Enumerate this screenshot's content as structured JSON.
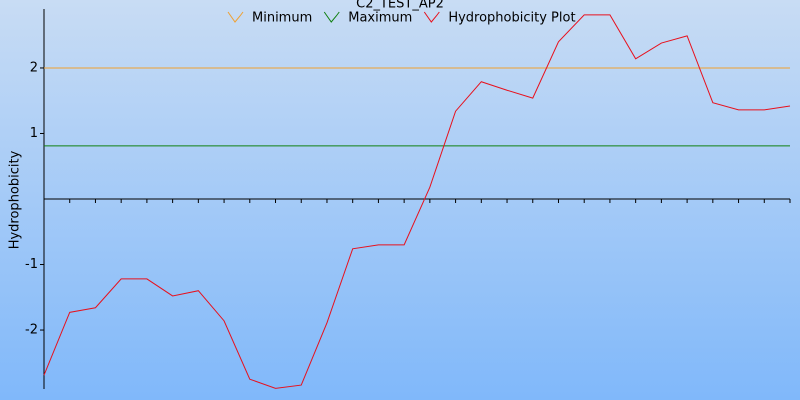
{
  "chart_data": {
    "type": "line",
    "title": "C2_TEST_AP2",
    "y_label": "Hydrophobicity",
    "categories": [
      null,
      null,
      null,
      null,
      null,
      null,
      null,
      null,
      null,
      null,
      null,
      null,
      null,
      null,
      null,
      null,
      null,
      null,
      null,
      null,
      null,
      null,
      null,
      null,
      null,
      null,
      null,
      null,
      null,
      null
    ],
    "series": [
      {
        "name": "Minimum",
        "color": "#f0a030",
        "value": 2
      },
      {
        "name": "Maximum",
        "color": "#108010",
        "value": 0.81
      },
      {
        "name": "Hydrophobicity Plot",
        "color": "#e8101c",
        "values": [
          -2.69,
          -1.73,
          -1.66,
          -1.22,
          -1.22,
          -1.48,
          -1.4,
          -1.86,
          -2.75,
          -2.89,
          -2.84,
          -1.89,
          -0.76,
          -0.7,
          -0.7,
          0.18,
          1.34,
          1.79,
          1.66,
          1.54,
          2.4,
          2.81,
          2.81,
          2.14,
          2.38,
          2.49,
          1.47,
          1.36,
          1.36,
          1.42
        ]
      }
    ],
    "ylim": [
      -2.9,
      2.9
    ],
    "yticks": [
      -2,
      -1,
      1,
      2
    ]
  }
}
